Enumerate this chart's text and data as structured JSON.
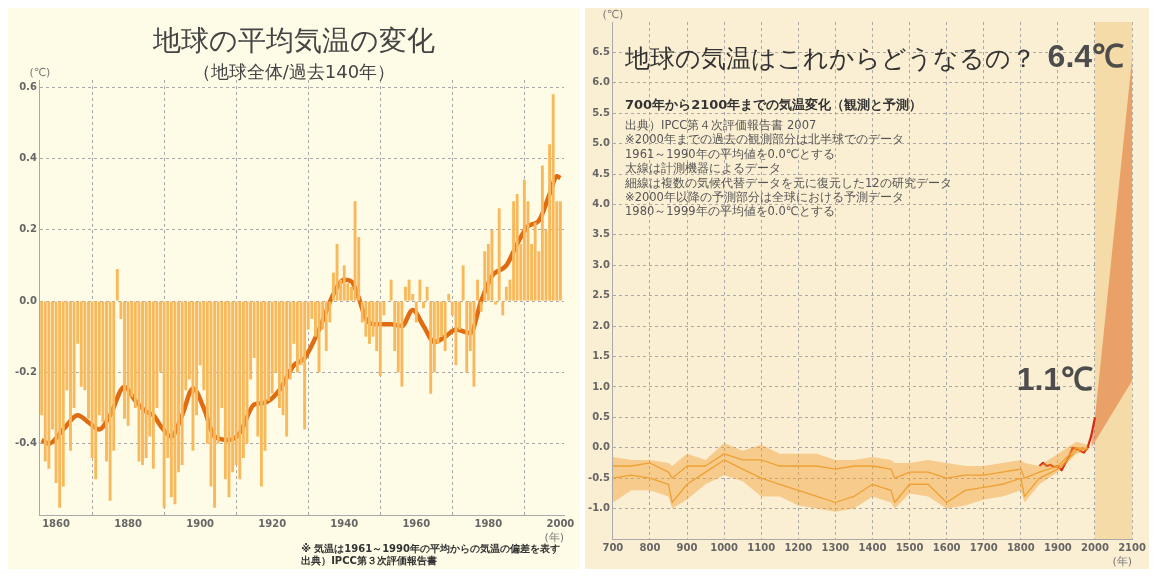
{
  "chart_data": [
    {
      "type": "bar",
      "title": "地球の平均気温の変化",
      "subtitle": "（地球全体/過去140年）",
      "ylabel": "(℃)",
      "xlabel": "(年)",
      "annotations": [
        "※ 気温は1961～1990年の平均からの気温の偏差を表す",
        "出典）IPCC第３次評価報告書"
      ],
      "x": [
        1856,
        1857,
        1858,
        1859,
        1860,
        1861,
        1862,
        1863,
        1864,
        1865,
        1866,
        1867,
        1868,
        1869,
        1870,
        1871,
        1872,
        1873,
        1874,
        1875,
        1876,
        1877,
        1878,
        1879,
        1880,
        1881,
        1882,
        1883,
        1884,
        1885,
        1886,
        1887,
        1888,
        1889,
        1890,
        1891,
        1892,
        1893,
        1894,
        1895,
        1896,
        1897,
        1898,
        1899,
        1900,
        1901,
        1902,
        1903,
        1904,
        1905,
        1906,
        1907,
        1908,
        1909,
        1910,
        1911,
        1912,
        1913,
        1914,
        1915,
        1916,
        1917,
        1918,
        1919,
        1920,
        1921,
        1922,
        1923,
        1924,
        1925,
        1926,
        1927,
        1928,
        1929,
        1930,
        1931,
        1932,
        1933,
        1934,
        1935,
        1936,
        1937,
        1938,
        1939,
        1940,
        1941,
        1942,
        1943,
        1944,
        1945,
        1946,
        1947,
        1948,
        1949,
        1950,
        1951,
        1952,
        1953,
        1954,
        1955,
        1956,
        1957,
        1958,
        1959,
        1960,
        1961,
        1962,
        1963,
        1964,
        1965,
        1966,
        1967,
        1968,
        1969,
        1970,
        1971,
        1972,
        1973,
        1974,
        1975,
        1976,
        1977,
        1978,
        1979,
        1980,
        1981,
        1982,
        1983,
        1984,
        1985,
        1986,
        1987,
        1988,
        1989,
        1990,
        1991,
        1992,
        1993,
        1994,
        1995,
        1996,
        1997,
        1998,
        1999,
        2000
      ],
      "series": [
        {
          "color": "#f8b95c",
          "values": [
            -0.32,
            -0.45,
            -0.47,
            -0.36,
            -0.51,
            -0.58,
            -0.52,
            -0.25,
            -0.42,
            -0.3,
            -0.12,
            -0.24,
            -0.25,
            -0.33,
            -0.44,
            -0.5,
            -0.32,
            -0.34,
            -0.45,
            -0.56,
            -0.42,
            0.09,
            -0.05,
            -0.33,
            -0.35,
            -0.27,
            -0.3,
            -0.45,
            -0.46,
            -0.44,
            -0.38,
            -0.47,
            -0.3,
            -0.2,
            -0.58,
            -0.44,
            -0.55,
            -0.57,
            -0.48,
            -0.46,
            -0.25,
            -0.22,
            -0.42,
            -0.32,
            -0.18,
            -0.25,
            -0.4,
            -0.52,
            -0.58,
            -0.4,
            -0.3,
            -0.5,
            -0.55,
            -0.48,
            -0.46,
            -0.5,
            -0.44,
            -0.4,
            -0.22,
            -0.16,
            -0.38,
            -0.52,
            -0.42,
            -0.28,
            -0.26,
            -0.2,
            -0.3,
            -0.32,
            -0.38,
            -0.22,
            -0.12,
            -0.2,
            -0.18,
            -0.36,
            -0.08,
            -0.05,
            -0.1,
            -0.2,
            -0.08,
            -0.14,
            -0.06,
            0.08,
            0.16,
            0.06,
            0.1,
            0.05,
            0.04,
            0.28,
            0.18,
            -0.06,
            -0.1,
            -0.12,
            -0.1,
            -0.14,
            -0.21,
            -0.04,
            0.0,
            0.06,
            -0.14,
            -0.2,
            -0.24,
            0.04,
            0.06,
            0.02,
            -0.06,
            0.06,
            -0.02,
            0.04,
            -0.26,
            -0.2,
            -0.12,
            -0.1,
            -0.14,
            0.02,
            -0.04,
            -0.18,
            -0.08,
            0.1,
            -0.2,
            -0.14,
            -0.24,
            0.06,
            -0.03,
            0.14,
            0.16,
            0.2,
            -0.01,
            0.26,
            -0.04,
            0.04,
            0.06,
            0.28,
            0.3,
            0.16,
            0.34,
            0.28,
            0.16,
            0.22,
            0.14,
            0.38,
            0.2,
            0.44,
            0.58,
            0.28,
            0.28
          ]
        },
        {
          "type": "line",
          "color": "#e06c12",
          "x": [
            1856,
            1858,
            1862,
            1866,
            1869,
            1872,
            1875,
            1879,
            1882,
            1885,
            1887,
            1889,
            1892,
            1895,
            1898,
            1901,
            1904,
            1908,
            1911,
            1915,
            1918,
            1922,
            1926,
            1929,
            1933,
            1937,
            1940,
            1942,
            1944,
            1946,
            1949,
            1953,
            1956,
            1959,
            1962,
            1965,
            1968,
            1971,
            1975,
            1978,
            1981,
            1985,
            1988,
            1991,
            1994,
            1997,
            1999,
            2000
          ],
          "values": [
            -0.39,
            -0.4,
            -0.36,
            -0.32,
            -0.34,
            -0.36,
            -0.32,
            -0.24,
            -0.28,
            -0.31,
            -0.32,
            -0.35,
            -0.38,
            -0.32,
            -0.245,
            -0.3,
            -0.38,
            -0.39,
            -0.37,
            -0.29,
            -0.285,
            -0.25,
            -0.18,
            -0.16,
            -0.08,
            0.02,
            0.06,
            0.055,
            0.01,
            -0.05,
            -0.065,
            -0.065,
            -0.07,
            -0.025,
            -0.07,
            -0.115,
            -0.1,
            -0.08,
            -0.09,
            0.0,
            0.07,
            0.1,
            0.16,
            0.21,
            0.225,
            0.3,
            0.35,
            0.345
          ]
        }
      ],
      "xlim": [
        1855.5,
        2001
      ],
      "xticks": [
        1860,
        1880,
        1900,
        1920,
        1940,
        1960,
        1980,
        2000
      ],
      "ylim": [
        -0.6,
        0.62
      ],
      "yticks": [
        {
          "value": -0.4,
          "label": "-0.4"
        },
        {
          "value": -0.2,
          "label": "-0.2"
        },
        {
          "value": 0,
          "label": "0.0"
        },
        0.2,
        0.4,
        0.6
      ],
      "grid": true
    },
    {
      "type": "line",
      "title": "地球の気温はこれからどうなるの？",
      "subtitle": "700年から2100年までの気温変化（観測と予測）",
      "ylabel": "(℃)",
      "xlabel": "(年)",
      "annotations": [
        "出典）IPCC第４次評価報告書 2007",
        "※2000年までの過去の観測部分は北半球でのデータ",
        "1961～1990年の平均値を0.0℃とする",
        "太線は計測機器によるデータ",
        "細線は複数の気候代替データを元に復元した12の研究データ",
        "※2000年以降の予測部分は全球における予測データ",
        "1980～1999年の平均値を0.0℃とする",
        {
          "text": "6.4℃",
          "x": 2100,
          "y": 6.4
        },
        {
          "text": "1.1℃",
          "x": 2100,
          "y": 1.1
        }
      ],
      "series": [
        {
          "color": "#f0a033",
          "x": [
            700,
            750,
            800,
            850,
            860,
            900,
            950,
            1000,
            1050,
            1100,
            1150,
            1200,
            1250,
            1300,
            1350,
            1400,
            1450,
            1460,
            1500,
            1550,
            1600,
            1650,
            1700,
            1750,
            1800,
            1810,
            1850,
            1900,
            1950,
            1980
          ],
          "values": [
            -0.3,
            -0.3,
            -0.25,
            -0.4,
            -0.5,
            -0.3,
            -0.3,
            -0.1,
            -0.2,
            -0.2,
            -0.3,
            -0.3,
            -0.3,
            -0.35,
            -0.3,
            -0.3,
            -0.35,
            -0.5,
            -0.4,
            -0.4,
            -0.5,
            -0.45,
            -0.45,
            -0.4,
            -0.35,
            -0.5,
            -0.4,
            -0.3,
            0.0,
            -0.02
          ],
          "lower": [
            -0.9,
            -0.7,
            -0.7,
            -0.8,
            -1.0,
            -0.85,
            -0.6,
            -0.45,
            -0.55,
            -0.8,
            -0.8,
            -0.95,
            -1.0,
            -1.05,
            -1.0,
            -0.8,
            -0.9,
            -1.0,
            -0.75,
            -0.8,
            -1.0,
            -0.95,
            -0.85,
            -0.8,
            -0.7,
            -0.9,
            -0.6,
            -0.4,
            -0.1,
            -0.05
          ],
          "upper": [
            -0.15,
            -0.2,
            -0.2,
            -0.25,
            -0.3,
            -0.1,
            -0.2,
            0.08,
            -0.05,
            0.05,
            -0.1,
            -0.1,
            -0.1,
            -0.2,
            -0.2,
            -0.15,
            -0.2,
            -0.25,
            -0.25,
            -0.2,
            -0.25,
            -0.3,
            -0.3,
            -0.25,
            -0.2,
            -0.25,
            -0.3,
            -0.1,
            0.1,
            0.05
          ]
        },
        {
          "color": "#f0a033",
          "x": [
            700,
            750,
            800,
            850,
            860,
            900,
            950,
            1000,
            1050,
            1100,
            1150,
            1200,
            1250,
            1300,
            1350,
            1400,
            1450,
            1460,
            1500,
            1550,
            1600,
            1650,
            1700,
            1750,
            1800,
            1810,
            1850,
            1900,
            1950,
            1980
          ],
          "values": [
            -0.5,
            -0.45,
            -0.5,
            -0.6,
            -0.9,
            -0.6,
            -0.4,
            -0.2,
            -0.35,
            -0.5,
            -0.6,
            -0.7,
            -0.8,
            -0.9,
            -0.8,
            -0.6,
            -0.7,
            -0.9,
            -0.6,
            -0.6,
            -0.9,
            -0.7,
            -0.65,
            -0.6,
            -0.5,
            -0.8,
            -0.5,
            -0.35,
            -0.05,
            0.0
          ]
        },
        {
          "color": "#d42a10",
          "x": [
            1850,
            1860,
            1870,
            1880,
            1890,
            1900,
            1910,
            1920,
            1930,
            1940,
            1950,
            1960,
            1970,
            1980,
            1990,
            2000
          ],
          "values": [
            -0.3,
            -0.25,
            -0.3,
            -0.28,
            -0.32,
            -0.3,
            -0.37,
            -0.25,
            -0.15,
            0.0,
            -0.02,
            -0.05,
            -0.08,
            0.0,
            0.2,
            0.5
          ]
        },
        {
          "color": "#dd5a1a",
          "x": [
            1990,
            2000,
            2100
          ],
          "values": [
            null,
            null,
            null
          ],
          "lower": [
            0.0,
            0.1,
            1.1
          ],
          "upper": [
            0.1,
            0.5,
            6.4
          ]
        }
      ],
      "bands": [
        {
          "axis": "x",
          "from": 2000,
          "to": 2100,
          "color": "#f5dba8"
        }
      ],
      "xlim": [
        700,
        2100
      ],
      "xticks": [
        700,
        800,
        900,
        1000,
        1100,
        1200,
        1300,
        1400,
        1500,
        1600,
        1700,
        1800,
        1900,
        2000,
        2100
      ],
      "ylim": [
        -1.5,
        7.0
      ],
      "yticks": [
        {
          "value": -1,
          "label": "-1.0"
        },
        -0.5,
        {
          "value": 0,
          "label": "0.0"
        },
        0.5,
        {
          "value": 1,
          "label": "1.0"
        },
        1.5,
        {
          "value": 2,
          "label": "2.0"
        },
        2.5,
        {
          "value": 3,
          "label": "3.0"
        },
        3.5,
        {
          "value": 4,
          "label": "4.0"
        },
        4.5,
        {
          "value": 5,
          "label": "5.0"
        },
        5.5,
        {
          "value": 6,
          "label": "6.0"
        },
        6.5
      ],
      "grid": true
    }
  ]
}
